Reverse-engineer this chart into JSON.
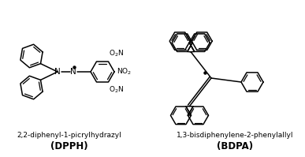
{
  "background_color": "#ffffff",
  "text_color": "#000000",
  "dpph_label": "2,2-diphenyl-1-picrylhydrazyl",
  "dpph_bold": "(DPPH)",
  "bdpa_label": "1,3-bisdiphenylene-2-phenylallyl",
  "bdpa_bold": "(BDPA)",
  "label_fontsize": 6.5,
  "bold_fontsize": 8.5
}
